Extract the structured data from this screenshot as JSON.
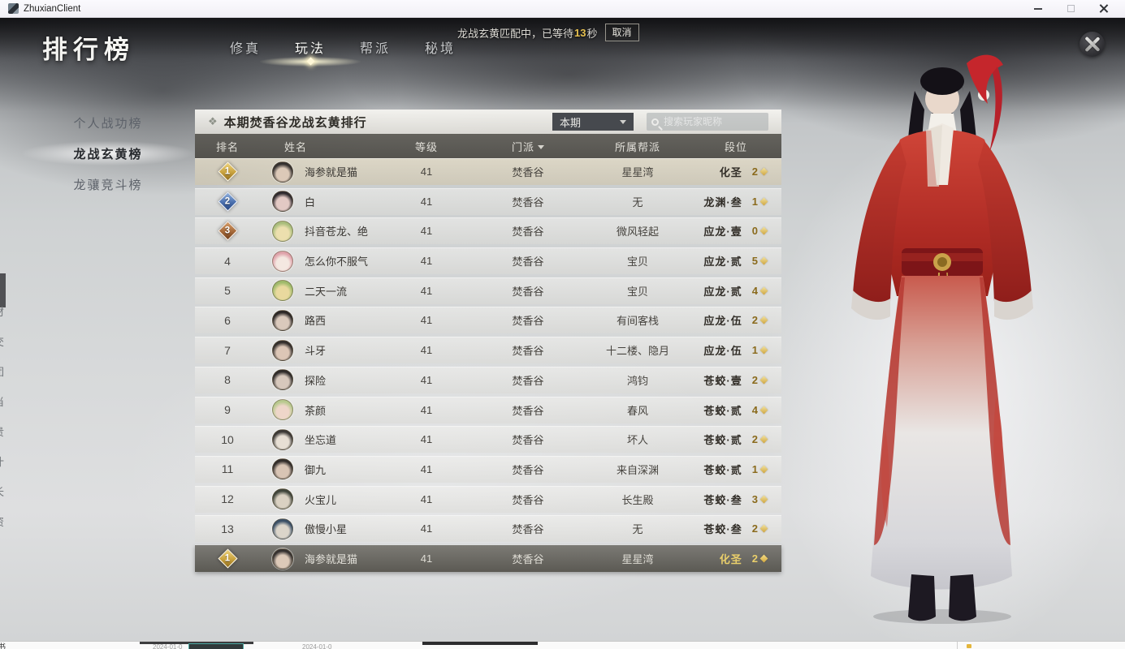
{
  "window": {
    "title": "ZhuxianClient"
  },
  "matchmaking": {
    "prefix": "龙战玄黄匹配中，已等待",
    "seconds": "13",
    "suffix": "秒",
    "cancel_label": "取消"
  },
  "page_title": "排行榜",
  "tabs": [
    {
      "label": "修真",
      "active": false
    },
    {
      "label": "玩法",
      "active": true
    },
    {
      "label": "帮派",
      "active": false
    },
    {
      "label": "秘境",
      "active": false
    }
  ],
  "sidebar": {
    "items": [
      {
        "label": "个人战功榜",
        "active": false
      },
      {
        "label": "龙战玄黄榜",
        "active": true
      },
      {
        "label": "龙骧竞斗榜",
        "active": false
      }
    ]
  },
  "icons": {
    "panel_title_icon": "❖"
  },
  "panel": {
    "title": "本期焚香谷龙战玄黄排行",
    "period_dropdown": "本期",
    "search_placeholder": "搜索玩家昵称",
    "columns": [
      "排名",
      "姓名",
      "等级",
      "门派",
      "所属帮派",
      "段位"
    ],
    "rows": [
      {
        "rank": "1",
        "medal": "gold",
        "name": "海参就是猫",
        "level": "41",
        "sect": "焚香谷",
        "guild": "星星湾",
        "tier": "化圣",
        "count": "2",
        "avatar": [
          "#34302f",
          "#dcc9b8"
        ]
      },
      {
        "rank": "2",
        "medal": "blue",
        "name": "白",
        "level": "41",
        "sect": "焚香谷",
        "guild": "无",
        "tier": "龙渊·叁",
        "count": "1",
        "avatar": [
          "#2f2a2e",
          "#e3c9c4"
        ]
      },
      {
        "rank": "3",
        "medal": "bronze",
        "name": "抖音苍龙、绝",
        "level": "41",
        "sect": "焚香谷",
        "guild": "微风轻起",
        "tier": "应龙·壹",
        "count": "0",
        "avatar": [
          "#a9bd7c",
          "#ecdfae"
        ]
      },
      {
        "rank": "4",
        "medal": null,
        "name": "怎么你不服气",
        "level": "41",
        "sect": "焚香谷",
        "guild": "宝贝",
        "tier": "应龙·贰",
        "count": "5",
        "avatar": [
          "#dfa3ab",
          "#f4e8e1"
        ]
      },
      {
        "rank": "5",
        "medal": null,
        "name": "二天一流",
        "level": "41",
        "sect": "焚香谷",
        "guild": "宝贝",
        "tier": "应龙·贰",
        "count": "4",
        "avatar": [
          "#9fba6b",
          "#e9d99e"
        ]
      },
      {
        "rank": "6",
        "medal": null,
        "name": "路西",
        "level": "41",
        "sect": "焚香谷",
        "guild": "有间客栈",
        "tier": "应龙·伍",
        "count": "2",
        "avatar": [
          "#2b2726",
          "#dac9bc"
        ]
      },
      {
        "rank": "7",
        "medal": null,
        "name": "斗牙",
        "level": "41",
        "sect": "焚香谷",
        "guild": "十二楼、隐月",
        "tier": "应龙·伍",
        "count": "1",
        "avatar": [
          "#332e2c",
          "#dcc6b6"
        ]
      },
      {
        "rank": "8",
        "medal": null,
        "name": "探险",
        "level": "41",
        "sect": "焚香谷",
        "guild": "鸿钧",
        "tier": "苍蛟·壹",
        "count": "2",
        "avatar": [
          "#2e2a29",
          "#d7c8bc"
        ]
      },
      {
        "rank": "9",
        "medal": null,
        "name": "茶颜",
        "level": "41",
        "sect": "焚香谷",
        "guild": "春风",
        "tier": "苍蛟·贰",
        "count": "4",
        "avatar": [
          "#b8c98e",
          "#eed6c9"
        ]
      },
      {
        "rank": "10",
        "medal": null,
        "name": "坐忘道",
        "level": "41",
        "sect": "焚香谷",
        "guild": "坏人",
        "tier": "苍蛟·贰",
        "count": "2",
        "avatar": [
          "#3b3835",
          "#e7dfd4"
        ]
      },
      {
        "rank": "11",
        "medal": null,
        "name": "御九",
        "level": "41",
        "sect": "焚香谷",
        "guild": "来自深渊",
        "tier": "苍蛟·贰",
        "count": "1",
        "avatar": [
          "#312c2a",
          "#d8c4b4"
        ]
      },
      {
        "rank": "12",
        "medal": null,
        "name": "火宝儿",
        "level": "41",
        "sect": "焚香谷",
        "guild": "长生殿",
        "tier": "苍蛟·叁",
        "count": "3",
        "avatar": [
          "#3f443a",
          "#dad1c2"
        ]
      },
      {
        "rank": "13",
        "medal": null,
        "name": "傲慢小星",
        "level": "41",
        "sect": "焚香谷",
        "guild": "无",
        "tier": "苍蛟·叁",
        "count": "2",
        "avatar": [
          "#3a4f66",
          "#dbd5ca"
        ]
      }
    ],
    "self_row": {
      "rank": "1",
      "medal": "gold",
      "name": "海参就是猫",
      "level": "41",
      "sect": "焚香谷",
      "guild": "星星湾",
      "tier": "化圣",
      "count": "2",
      "avatar": [
        "#34302f",
        "#dcc9b8"
      ]
    }
  },
  "edge_glyphs": [
    "材",
    "交",
    "团",
    "当",
    "贵",
    "什",
    "长",
    "资"
  ],
  "bottom_strip": {
    "left_texts": [
      "2024-01-0",
      "2024-01-0"
    ]
  },
  "colors": {
    "accent_gold": "#e7c14f",
    "medal_gold": "#c8a13d",
    "medal_blue": "#4a6fae",
    "medal_bronze": "#a5693a",
    "header_bar": "#55534d",
    "self_row_bar": "#5f5d57"
  }
}
